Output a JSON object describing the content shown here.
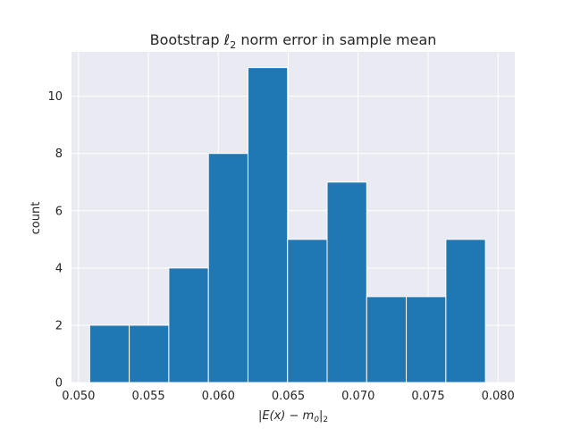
{
  "chart_data": {
    "type": "bar",
    "title_prefix": "Bootstrap ",
    "title_ell": "ℓ",
    "title_sub": "2",
    "title_suffix": " norm error in sample mean",
    "ylabel": "count",
    "xlabel_main": "|E(x) − m",
    "xlabel_sub0": "0",
    "xlabel_bar": "|",
    "xlabel_sub2": "2",
    "xlim": [
      0.0495,
      0.0812
    ],
    "ylim": [
      0,
      11.55
    ],
    "grid": true,
    "bins": [
      {
        "x0": 0.0508,
        "x1": 0.05363,
        "count": 2
      },
      {
        "x0": 0.05363,
        "x1": 0.05646,
        "count": 2
      },
      {
        "x0": 0.05646,
        "x1": 0.05929,
        "count": 4
      },
      {
        "x0": 0.05929,
        "x1": 0.06212,
        "count": 8
      },
      {
        "x0": 0.06212,
        "x1": 0.06495,
        "count": 11
      },
      {
        "x0": 0.06495,
        "x1": 0.06778,
        "count": 5
      },
      {
        "x0": 0.06778,
        "x1": 0.07061,
        "count": 7
      },
      {
        "x0": 0.07061,
        "x1": 0.07344,
        "count": 3
      },
      {
        "x0": 0.07344,
        "x1": 0.07627,
        "count": 3
      },
      {
        "x0": 0.07627,
        "x1": 0.0791,
        "count": 5
      }
    ],
    "xticks": [
      {
        "value": 0.05,
        "label": "0.050"
      },
      {
        "value": 0.055,
        "label": "0.055"
      },
      {
        "value": 0.06,
        "label": "0.060"
      },
      {
        "value": 0.065,
        "label": "0.065"
      },
      {
        "value": 0.07,
        "label": "0.070"
      },
      {
        "value": 0.075,
        "label": "0.075"
      },
      {
        "value": 0.08,
        "label": "0.080"
      }
    ],
    "yticks": [
      {
        "value": 0,
        "label": "0"
      },
      {
        "value": 2,
        "label": "2"
      },
      {
        "value": 4,
        "label": "4"
      },
      {
        "value": 6,
        "label": "6"
      },
      {
        "value": 8,
        "label": "8"
      },
      {
        "value": 10,
        "label": "10"
      }
    ],
    "colors": {
      "bar": "#1f77b4",
      "bar_edge": "#ffffff",
      "plot_bg": "#eaeaf2",
      "grid": "#ffffff"
    }
  }
}
